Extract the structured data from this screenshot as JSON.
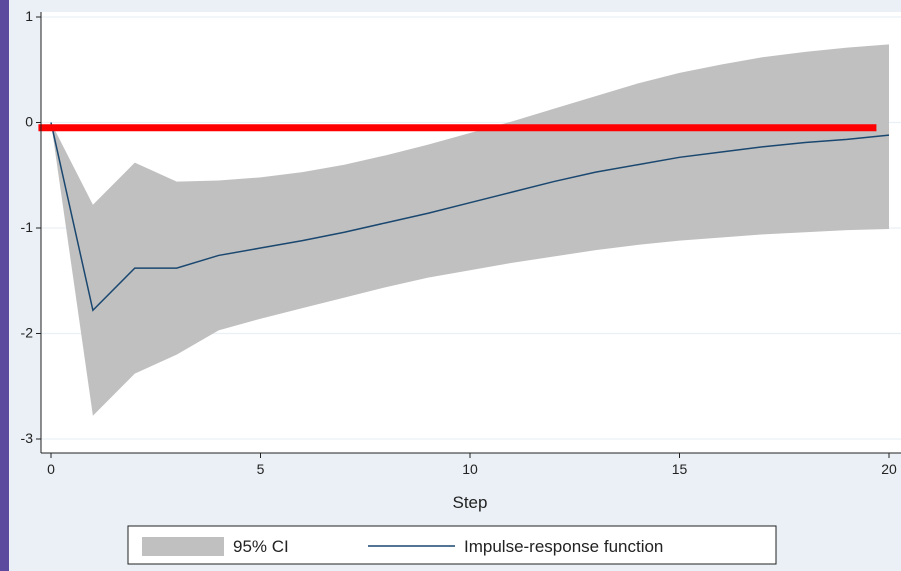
{
  "chart_data": {
    "type": "area",
    "title": "",
    "xlabel": "Step",
    "ylabel": "",
    "xlim": [
      0,
      20
    ],
    "ylim": [
      -3,
      1
    ],
    "x_ticks": [
      0,
      5,
      10,
      15,
      20
    ],
    "y_ticks": [
      -3,
      -2,
      -1,
      0,
      1
    ],
    "grid": true,
    "legend_position": "bottom",
    "x": [
      0,
      1,
      2,
      3,
      4,
      5,
      6,
      7,
      8,
      9,
      10,
      11,
      12,
      13,
      14,
      15,
      16,
      17,
      18,
      19,
      20
    ],
    "series": [
      {
        "name": "95% CI",
        "kind": "band",
        "color": "#c0c0c0",
        "upper": [
          0.0,
          -0.78,
          -0.38,
          -0.56,
          -0.55,
          -0.52,
          -0.47,
          -0.4,
          -0.31,
          -0.21,
          -0.1,
          0.01,
          0.13,
          0.25,
          0.37,
          0.47,
          0.55,
          0.62,
          0.67,
          0.71,
          0.74
        ],
        "lower": [
          0.0,
          -2.78,
          -2.38,
          -2.2,
          -1.97,
          -1.86,
          -1.76,
          -1.66,
          -1.56,
          -1.47,
          -1.4,
          -1.33,
          -1.27,
          -1.21,
          -1.16,
          -1.12,
          -1.09,
          -1.06,
          -1.04,
          -1.02,
          -1.01
        ]
      },
      {
        "name": "Impulse-response function",
        "kind": "line",
        "color": "#1a476f",
        "values": [
          0.0,
          -1.78,
          -1.38,
          -1.38,
          -1.26,
          -1.19,
          -1.12,
          -1.04,
          -0.95,
          -0.86,
          -0.76,
          -0.66,
          -0.56,
          -0.47,
          -0.4,
          -0.33,
          -0.28,
          -0.23,
          -0.19,
          -0.16,
          -0.12
        ]
      }
    ],
    "annotations": [
      {
        "kind": "horizontal-line",
        "y": -0.05,
        "x_from": -0.3,
        "x_to": 19.7,
        "color": "#ff0000"
      }
    ]
  }
}
